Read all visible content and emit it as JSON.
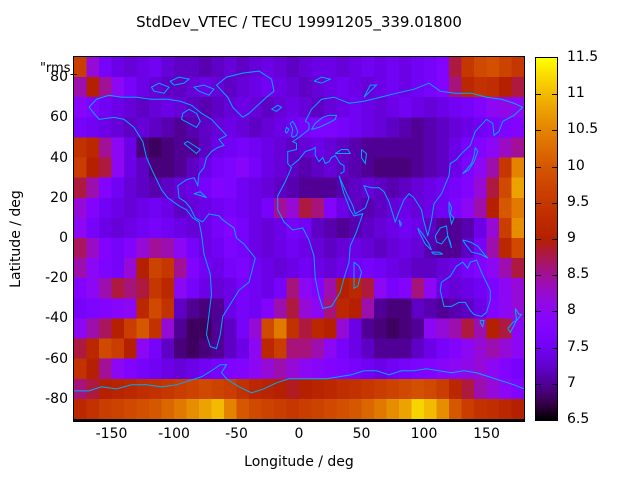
{
  "title": "StdDev_VTEC / TECU 19991205_339.01800",
  "key_label": "\"rms_",
  "axes": {
    "x": {
      "label": "Longitude / deg",
      "min": -180,
      "max": 180,
      "ticks": [
        -150,
        -100,
        -50,
        0,
        50,
        100,
        150
      ]
    },
    "y": {
      "label": "Latitude / deg",
      "min": -90,
      "max": 90,
      "ticks": [
        80,
        60,
        40,
        20,
        0,
        -20,
        -40,
        -60,
        -80
      ]
    }
  },
  "colorbar": {
    "min": 6.5,
    "max": 11.5,
    "ticks": [
      6.5,
      7,
      7.5,
      8,
      8.5,
      9,
      9.5,
      10,
      10.5,
      11,
      11.5
    ],
    "palette": "gnuplot rgbformulae 7,5,15 (black-violet-red-yellow)"
  },
  "map_overlay": {
    "name": "world-coastlines",
    "color": "#00a8ff"
  },
  "chart_data": {
    "type": "heatmap",
    "title": "StdDev_VTEC / TECU 19991205_339.01800",
    "xlabel": "Longitude / deg",
    "ylabel": "Latitude / deg",
    "x_range": [
      -180,
      180
    ],
    "y_range": [
      -90,
      90
    ],
    "value_range": [
      6.5,
      11.5
    ],
    "grid_deg": 10,
    "rows_order": "north_to_south (lat 85 to -85), cols west_to_east (lon -175 to 175)",
    "values_by_row_north_to_south": [
      [
        9.6,
        8.2,
        7.6,
        7.4,
        7.3,
        7.4,
        7.5,
        7.3,
        7.2,
        7.2,
        7.1,
        7.2,
        7.3,
        7.2,
        7.3,
        7.4,
        7.3,
        7.2,
        7.3,
        7.4,
        7.4,
        7.3,
        7.4,
        7.5,
        7.4,
        7.5,
        7.4,
        7.5,
        7.6,
        7.8,
        8.8,
        9.5,
        9.8,
        9.9,
        9.7,
        9.5
      ],
      [
        8.4,
        9.0,
        8.5,
        8.0,
        7.6,
        7.4,
        7.3,
        7.2,
        7.2,
        7.3,
        7.4,
        7.3,
        7.2,
        7.3,
        7.4,
        7.5,
        7.4,
        7.3,
        7.2,
        7.3,
        7.4,
        7.5,
        7.4,
        7.3,
        7.4,
        7.5,
        7.4,
        7.5,
        7.6,
        7.8,
        8.6,
        9.2,
        9.4,
        9.3,
        9.0,
        8.8
      ],
      [
        7.9,
        7.7,
        7.5,
        7.4,
        7.3,
        7.2,
        7.3,
        7.4,
        7.3,
        7.2,
        7.1,
        7.2,
        7.3,
        7.4,
        7.3,
        7.2,
        7.3,
        7.4,
        7.3,
        7.2,
        7.3,
        7.4,
        7.5,
        7.4,
        7.3,
        7.4,
        7.5,
        7.4,
        7.3,
        7.4,
        7.5,
        7.6,
        7.8,
        8.0,
        8.1,
        8.0
      ],
      [
        7.6,
        7.5,
        7.4,
        7.3,
        7.2,
        7.3,
        7.2,
        7.1,
        7.0,
        7.1,
        7.2,
        7.3,
        7.4,
        7.3,
        7.2,
        7.3,
        7.4,
        7.5,
        7.6,
        7.7,
        7.7,
        7.6,
        7.5,
        7.4,
        7.3,
        7.2,
        7.1,
        7.0,
        7.1,
        7.2,
        7.3,
        7.4,
        7.5,
        7.6,
        7.7,
        7.8
      ],
      [
        9.4,
        9.2,
        8.5,
        8.0,
        7.4,
        6.9,
        6.8,
        6.9,
        7.0,
        7.0,
        7.2,
        7.4,
        7.5,
        7.6,
        7.5,
        7.4,
        7.3,
        7.2,
        7.3,
        7.4,
        7.3,
        7.2,
        7.1,
        7.0,
        7.0,
        7.0,
        7.0,
        7.0,
        7.1,
        7.2,
        7.4,
        7.6,
        7.8,
        8.0,
        8.3,
        8.5
      ],
      [
        9.6,
        9.0,
        8.8,
        8.0,
        7.4,
        7.2,
        6.9,
        6.9,
        7.0,
        7.2,
        7.4,
        7.6,
        7.7,
        7.9,
        7.6,
        7.4,
        7.3,
        7.2,
        7.1,
        7.2,
        7.3,
        7.2,
        7.1,
        7.0,
        6.9,
        6.9,
        6.9,
        7.0,
        7.1,
        7.2,
        7.4,
        7.7,
        8.0,
        8.4,
        9.5,
        10.5
      ],
      [
        8.8,
        8.4,
        7.8,
        7.5,
        7.3,
        7.2,
        7.1,
        7.2,
        7.3,
        7.4,
        7.6,
        7.8,
        7.7,
        7.5,
        7.4,
        7.3,
        7.2,
        7.1,
        7.0,
        7.0,
        7.0,
        7.1,
        7.2,
        7.3,
        7.2,
        7.1,
        7.2,
        7.3,
        7.4,
        7.5,
        7.6,
        7.8,
        8.2,
        8.8,
        9.8,
        10.8
      ],
      [
        8.2,
        7.8,
        7.5,
        7.4,
        7.3,
        7.4,
        7.5,
        7.4,
        7.2,
        7.3,
        7.4,
        7.5,
        7.6,
        7.5,
        7.4,
        7.6,
        8.5,
        8.2,
        8.8,
        8.6,
        7.8,
        7.4,
        7.2,
        7.1,
        7.2,
        7.3,
        7.4,
        7.3,
        7.4,
        7.5,
        7.7,
        8.0,
        8.4,
        9.0,
        10.0,
        10.4
      ],
      [
        8.0,
        7.6,
        7.4,
        7.3,
        7.4,
        7.5,
        7.6,
        7.5,
        7.4,
        7.3,
        7.4,
        7.6,
        7.8,
        7.6,
        7.4,
        7.3,
        7.4,
        7.6,
        7.5,
        7.2,
        7.1,
        7.0,
        7.1,
        7.2,
        7.3,
        7.4,
        7.5,
        7.4,
        7.2,
        7.0,
        7.0,
        7.1,
        7.4,
        8.2,
        9.6,
        10.6
      ],
      [
        8.7,
        8.3,
        7.8,
        7.6,
        7.8,
        8.2,
        8.5,
        8.4,
        8.0,
        7.6,
        7.4,
        7.5,
        7.7,
        7.6,
        7.4,
        7.3,
        7.4,
        7.5,
        7.4,
        7.3,
        7.2,
        7.3,
        7.4,
        7.3,
        7.2,
        7.3,
        7.4,
        7.3,
        7.1,
        7.0,
        7.0,
        7.2,
        7.6,
        8.4,
        9.2,
        9.8
      ],
      [
        8.4,
        8.0,
        7.7,
        7.6,
        8.2,
        9.0,
        9.7,
        9.5,
        8.5,
        7.8,
        7.5,
        7.4,
        7.6,
        7.7,
        7.5,
        7.4,
        7.3,
        7.4,
        7.5,
        7.4,
        7.3,
        7.4,
        7.5,
        7.6,
        7.5,
        7.4,
        7.3,
        7.2,
        7.2,
        7.3,
        7.4,
        7.6,
        7.8,
        8.0,
        8.4,
        8.8
      ],
      [
        7.8,
        8.0,
        8.4,
        8.8,
        8.6,
        8.8,
        9.5,
        9.2,
        8.0,
        7.6,
        7.4,
        7.3,
        7.4,
        7.6,
        7.5,
        7.4,
        7.6,
        8.6,
        8.0,
        7.8,
        8.4,
        9.0,
        9.2,
        8.8,
        8.0,
        7.6,
        7.8,
        8.6,
        8.0,
        7.4,
        7.3,
        7.4,
        7.5,
        7.7,
        8.0,
        8.2
      ],
      [
        7.6,
        7.7,
        7.8,
        7.9,
        8.0,
        9.2,
        9.8,
        9.4,
        7.2,
        7.0,
        6.9,
        7.0,
        7.4,
        7.6,
        7.5,
        7.8,
        8.4,
        8.8,
        8.2,
        8.0,
        8.6,
        9.2,
        9.0,
        8.4,
        7.0,
        6.9,
        6.9,
        7.2,
        7.1,
        7.0,
        7.1,
        7.2,
        7.4,
        7.8,
        8.0,
        8.2
      ],
      [
        8.0,
        8.4,
        8.7,
        9.0,
        9.6,
        10.0,
        9.4,
        8.2,
        7.0,
        6.8,
        6.8,
        7.0,
        7.2,
        7.6,
        8.2,
        9.8,
        10.4,
        9.4,
        8.8,
        9.2,
        9.0,
        8.2,
        7.4,
        7.0,
        6.9,
        6.8,
        6.9,
        7.0,
        8.0,
        8.2,
        8.4,
        8.8,
        8.4,
        9.0,
        8.8,
        8.0
      ],
      [
        8.8,
        9.2,
        9.8,
        9.6,
        9.0,
        8.0,
        7.6,
        7.2,
        6.9,
        6.8,
        6.9,
        7.0,
        7.2,
        7.4,
        8.0,
        9.2,
        9.6,
        8.6,
        8.6,
        8.4,
        8.0,
        7.6,
        7.4,
        7.2,
        7.0,
        7.0,
        7.0,
        7.2,
        7.4,
        7.6,
        7.8,
        8.0,
        8.2,
        8.4,
        8.2,
        8.0
      ],
      [
        9.4,
        9.0,
        8.5,
        8.0,
        7.8,
        7.6,
        7.5,
        7.4,
        7.3,
        7.4,
        7.5,
        7.6,
        7.7,
        7.8,
        8.0,
        8.2,
        8.4,
        8.2,
        8.0,
        7.9,
        7.8,
        7.7,
        7.6,
        7.5,
        7.4,
        7.5,
        7.6,
        7.7,
        7.8,
        7.9,
        8.0,
        8.1,
        8.2,
        8.0,
        7.8,
        7.6
      ],
      [
        8.6,
        8.8,
        9.0,
        9.1,
        9.2,
        9.3,
        9.4,
        9.5,
        9.6,
        9.7,
        9.8,
        9.7,
        9.6,
        9.4,
        9.2,
        9.1,
        9.0,
        8.9,
        9.0,
        9.1,
        9.2,
        9.3,
        9.4,
        9.5,
        9.6,
        9.7,
        9.8,
        9.9,
        9.8,
        9.6,
        9.2,
        8.8,
        8.4,
        8.2,
        8.0,
        7.8
      ],
      [
        9.2,
        9.4,
        9.6,
        9.7,
        9.8,
        9.9,
        10.0,
        10.2,
        10.4,
        10.6,
        10.8,
        11.0,
        10.5,
        10.0,
        9.8,
        9.7,
        9.6,
        9.5,
        9.6,
        9.7,
        9.8,
        9.9,
        10.0,
        10.2,
        10.4,
        10.6,
        10.8,
        11.2,
        11.0,
        10.6,
        10.0,
        9.6,
        9.4,
        9.3,
        9.2,
        9.0
      ]
    ]
  }
}
